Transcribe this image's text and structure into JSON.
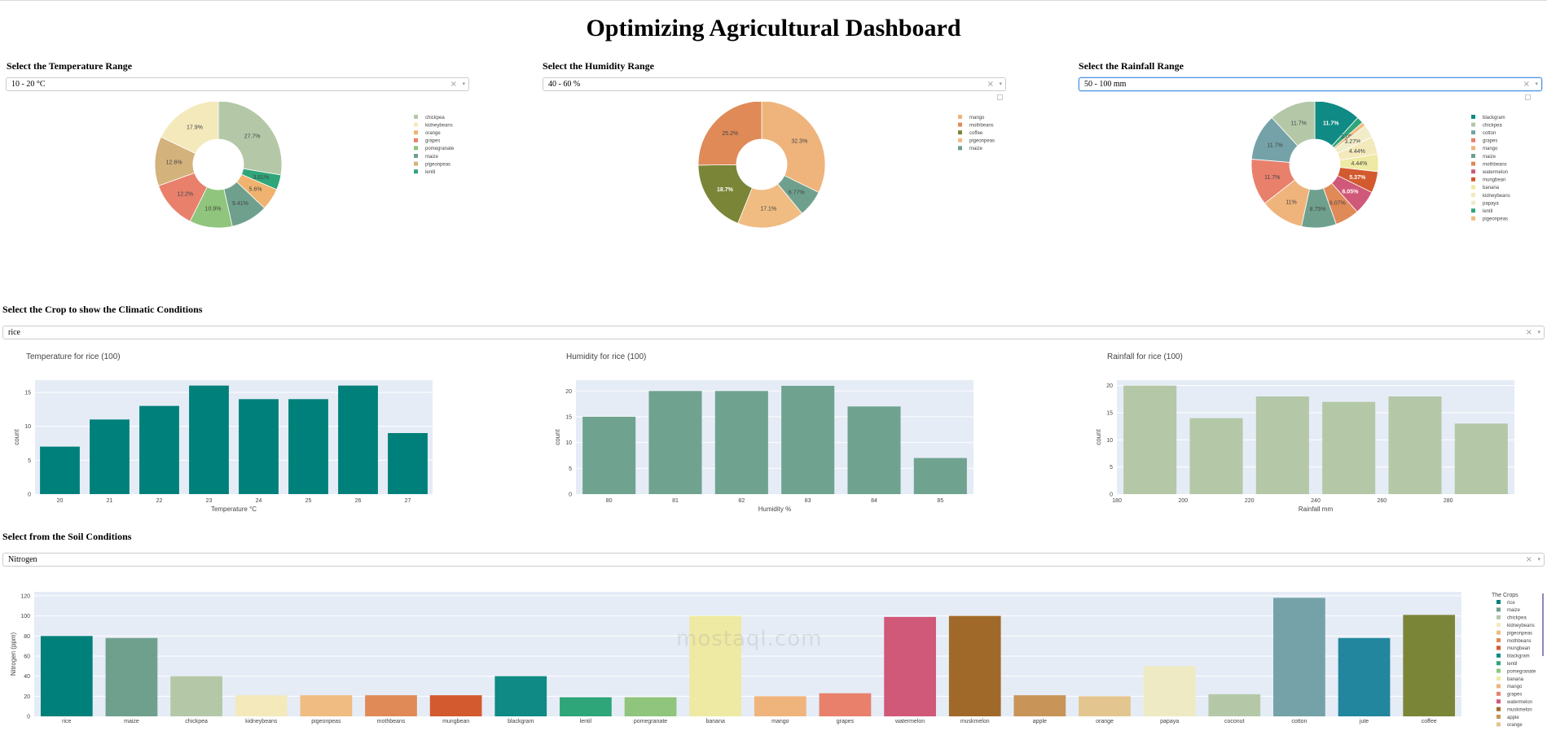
{
  "header": {
    "title": "Optimizing Agricultural Dashboard"
  },
  "filters": {
    "temperature": {
      "label": "Select the Temperature Range",
      "value": "10 - 20 °C"
    },
    "humidity": {
      "label": "Select the Humidity Range",
      "value": "40 - 60 %"
    },
    "rainfall": {
      "label": "Select the Rainfall Range",
      "value": "50 - 100 mm"
    },
    "crop": {
      "label": "Select the Crop to show the Climatic Conditions",
      "value": "rice"
    },
    "soil": {
      "label": "Select from the Soil Conditions",
      "value": "Nitrogen"
    },
    "clear_glyph": "×",
    "caret_glyph": "▾"
  },
  "watermark": {
    "text": "mostaql.com"
  },
  "chart_data": [
    {
      "type": "pie",
      "id": "temp_pie",
      "hole": true,
      "slices": [
        {
          "label": "chickpea",
          "value": 27.7,
          "text": "27.7%",
          "color": "#b4c8a8"
        },
        {
          "label": "kidneybeans",
          "value": 17.9,
          "text": "17.9%",
          "color": "#f3e9bb"
        },
        {
          "label": "orange",
          "value": 5.6,
          "text": "5.6%",
          "color": "#efb36f"
        },
        {
          "label": "grapes",
          "value": 12.2,
          "text": "12.2%",
          "color": "#e8806c"
        },
        {
          "label": "pomegranate",
          "value": 10.9,
          "text": "10.9%",
          "color": "#8fc57c"
        },
        {
          "label": "maize",
          "value": 9.41,
          "text": "9.41%",
          "color": "#6fa08e"
        },
        {
          "label": "pigeonpeas",
          "value": 12.6,
          "text": "12.6%",
          "color": "#d4b27c"
        },
        {
          "label": "lentil",
          "value": 3.81,
          "text": "3.81%",
          "color": "#2fa57a"
        }
      ],
      "order": [
        "chickpea",
        "lentil",
        "orange",
        "maize",
        "pomegranate",
        "grapes",
        "pigeonpeas",
        "kidneybeans"
      ],
      "legend": [
        "chickpea",
        "kidneybeans",
        "orange",
        "grapes",
        "pomegranate",
        "maize",
        "pigeonpeas",
        "lentil"
      ]
    },
    {
      "type": "pie",
      "id": "hum_pie",
      "hole": true,
      "slices": [
        {
          "label": "mango",
          "value": 32.3,
          "text": "32.3%",
          "color": "#efb47c"
        },
        {
          "label": "mothbeans",
          "value": 25.2,
          "text": "25.2%",
          "color": "#e08a58"
        },
        {
          "label": "coffee",
          "value": 18.7,
          "text": "18.7%",
          "color": "#7b8537"
        },
        {
          "label": "pigeonpeas",
          "value": 17.1,
          "text": "17.1%",
          "color": "#f0bc82"
        },
        {
          "label": "maize",
          "value": 6.77,
          "text": "6.77%",
          "color": "#6fa08e"
        }
      ],
      "order": [
        "mango",
        "maize",
        "pigeonpeas",
        "coffee",
        "mothbeans"
      ],
      "legend": [
        "mango",
        "mothbeans",
        "coffee",
        "pigeonpeas",
        "maize"
      ]
    },
    {
      "type": "pie",
      "id": "rain_pie",
      "hole": true,
      "slices": [
        {
          "label": "blackgram",
          "value": 11.7,
          "text": "11.7%",
          "color": "#0f8a84"
        },
        {
          "label": "chickpea",
          "value": 11.7,
          "text": "11.7%",
          "color": "#b4c8a8"
        },
        {
          "label": "cotton",
          "value": 11.7,
          "text": "11.7%",
          "color": "#74a2a8"
        },
        {
          "label": "grapes",
          "value": 11.7,
          "text": "11.7%",
          "color": "#e8806c"
        },
        {
          "label": "mango",
          "value": 11,
          "text": "11%",
          "color": "#efb47c"
        },
        {
          "label": "maize",
          "value": 8.75,
          "text": "8.75%",
          "color": "#6fa08e"
        },
        {
          "label": "mothbeans",
          "value": 6.07,
          "text": "6.07%",
          "color": "#e08a58"
        },
        {
          "label": "watermelon",
          "value": 6.05,
          "text": "6.05%",
          "color": "#d05878"
        },
        {
          "label": "mungbean",
          "value": 5.37,
          "text": "5.37%",
          "color": "#d25a2e"
        },
        {
          "label": "banana",
          "value": 4.44,
          "text": "4.44%",
          "color": "#eee9a3"
        },
        {
          "label": "kidneybeans",
          "value": 4.44,
          "text": "4.44%",
          "color": "#f3e9bb"
        },
        {
          "label": "papaya",
          "value": 3.27,
          "text": "3.27%",
          "color": "#f0ecc8"
        },
        {
          "label": "lentil",
          "value": 1.65,
          "text": "",
          "color": "#2fa57a"
        },
        {
          "label": "pigeonpeas",
          "value": 1.05,
          "text": "1.05%",
          "color": "#f0bc82"
        }
      ],
      "order": [
        "blackgram",
        "lentil",
        "pigeonpeas",
        "papaya",
        "kidneybeans",
        "banana",
        "mungbean",
        "watermelon",
        "mothbeans",
        "maize",
        "mango",
        "grapes",
        "cotton",
        "chickpea"
      ],
      "legend": [
        "blackgram",
        "chickpea",
        "cotton",
        "grapes",
        "mango",
        "maize",
        "mothbeans",
        "watermelon",
        "mungbean",
        "banana",
        "kidneybeans",
        "papaya",
        "lentil",
        "pigeonpeas"
      ]
    },
    {
      "type": "bar",
      "id": "temp_bar",
      "title": "Temperature for rice (100)",
      "xlabel": "Temperature °C",
      "ylabel": "count",
      "categories": [
        "20",
        "21",
        "22",
        "23",
        "24",
        "25",
        "26",
        "27"
      ],
      "values": [
        7,
        11,
        13,
        16,
        14,
        14,
        16,
        9
      ],
      "ylim": [
        0,
        16.8
      ],
      "yticks": [
        0,
        5,
        10,
        15
      ],
      "color": "#00807a"
    },
    {
      "type": "bar",
      "id": "hum_bar",
      "title": "Humidity for rice (100)",
      "xlabel": "Humidity %",
      "ylabel": "count",
      "categories": [
        "80",
        "81",
        "82",
        "83",
        "84",
        "85"
      ],
      "values": [
        15,
        20,
        20,
        21,
        17,
        7
      ],
      "ylim": [
        0,
        22.1
      ],
      "yticks": [
        0,
        5,
        10,
        15,
        20
      ],
      "color": "#6fa38f"
    },
    {
      "type": "bar",
      "id": "rain_bar",
      "title": "Rainfall for rice (100)",
      "xlabel": "Rainfall mm",
      "ylabel": "count",
      "categories": [
        "190",
        "210",
        "230",
        "250",
        "270",
        "290"
      ],
      "values": [
        20,
        14,
        18,
        17,
        18,
        13
      ],
      "xlim": [
        180,
        300
      ],
      "xticks": [
        "180",
        "200",
        "220",
        "240",
        "260",
        "280"
      ],
      "ylim": [
        0,
        21
      ],
      "yticks": [
        0,
        5,
        10,
        15,
        20
      ],
      "color": "#b4c8a8"
    },
    {
      "type": "bar",
      "id": "soil_bar",
      "xlabel": "",
      "ylabel": "Nitrogen (ppm)",
      "legend_title": "The Crops",
      "categories": [
        "rice",
        "maize",
        "chickpea",
        "kidneybeans",
        "pigeonpeas",
        "mothbeans",
        "mungbean",
        "blackgram",
        "lentil",
        "pomegranate",
        "banana",
        "mango",
        "grapes",
        "watermelon",
        "muskmelon",
        "apple",
        "orange",
        "papaya",
        "coconut",
        "cotton",
        "jute",
        "coffee"
      ],
      "values": [
        80,
        78,
        40,
        21,
        21,
        21,
        21,
        40,
        19,
        19,
        100,
        20,
        23,
        99,
        100,
        21,
        20,
        50,
        22,
        118,
        78,
        101
      ],
      "colors": [
        "#00807a",
        "#6fa08e",
        "#b4c8a8",
        "#f3e9bb",
        "#f0bc82",
        "#e08a58",
        "#d25a2e",
        "#0f8a84",
        "#2fa57a",
        "#8fc57c",
        "#eee9a3",
        "#efb47c",
        "#e8806c",
        "#d05878",
        "#a0692a",
        "#c99458",
        "#e3c58f",
        "#eeeac3",
        "#b4c8a8",
        "#74a2a8",
        "#22869e",
        "#7b8537"
      ],
      "ylim": [
        0,
        124
      ],
      "yticks": [
        0,
        20,
        40,
        60,
        80,
        100,
        120
      ]
    }
  ]
}
